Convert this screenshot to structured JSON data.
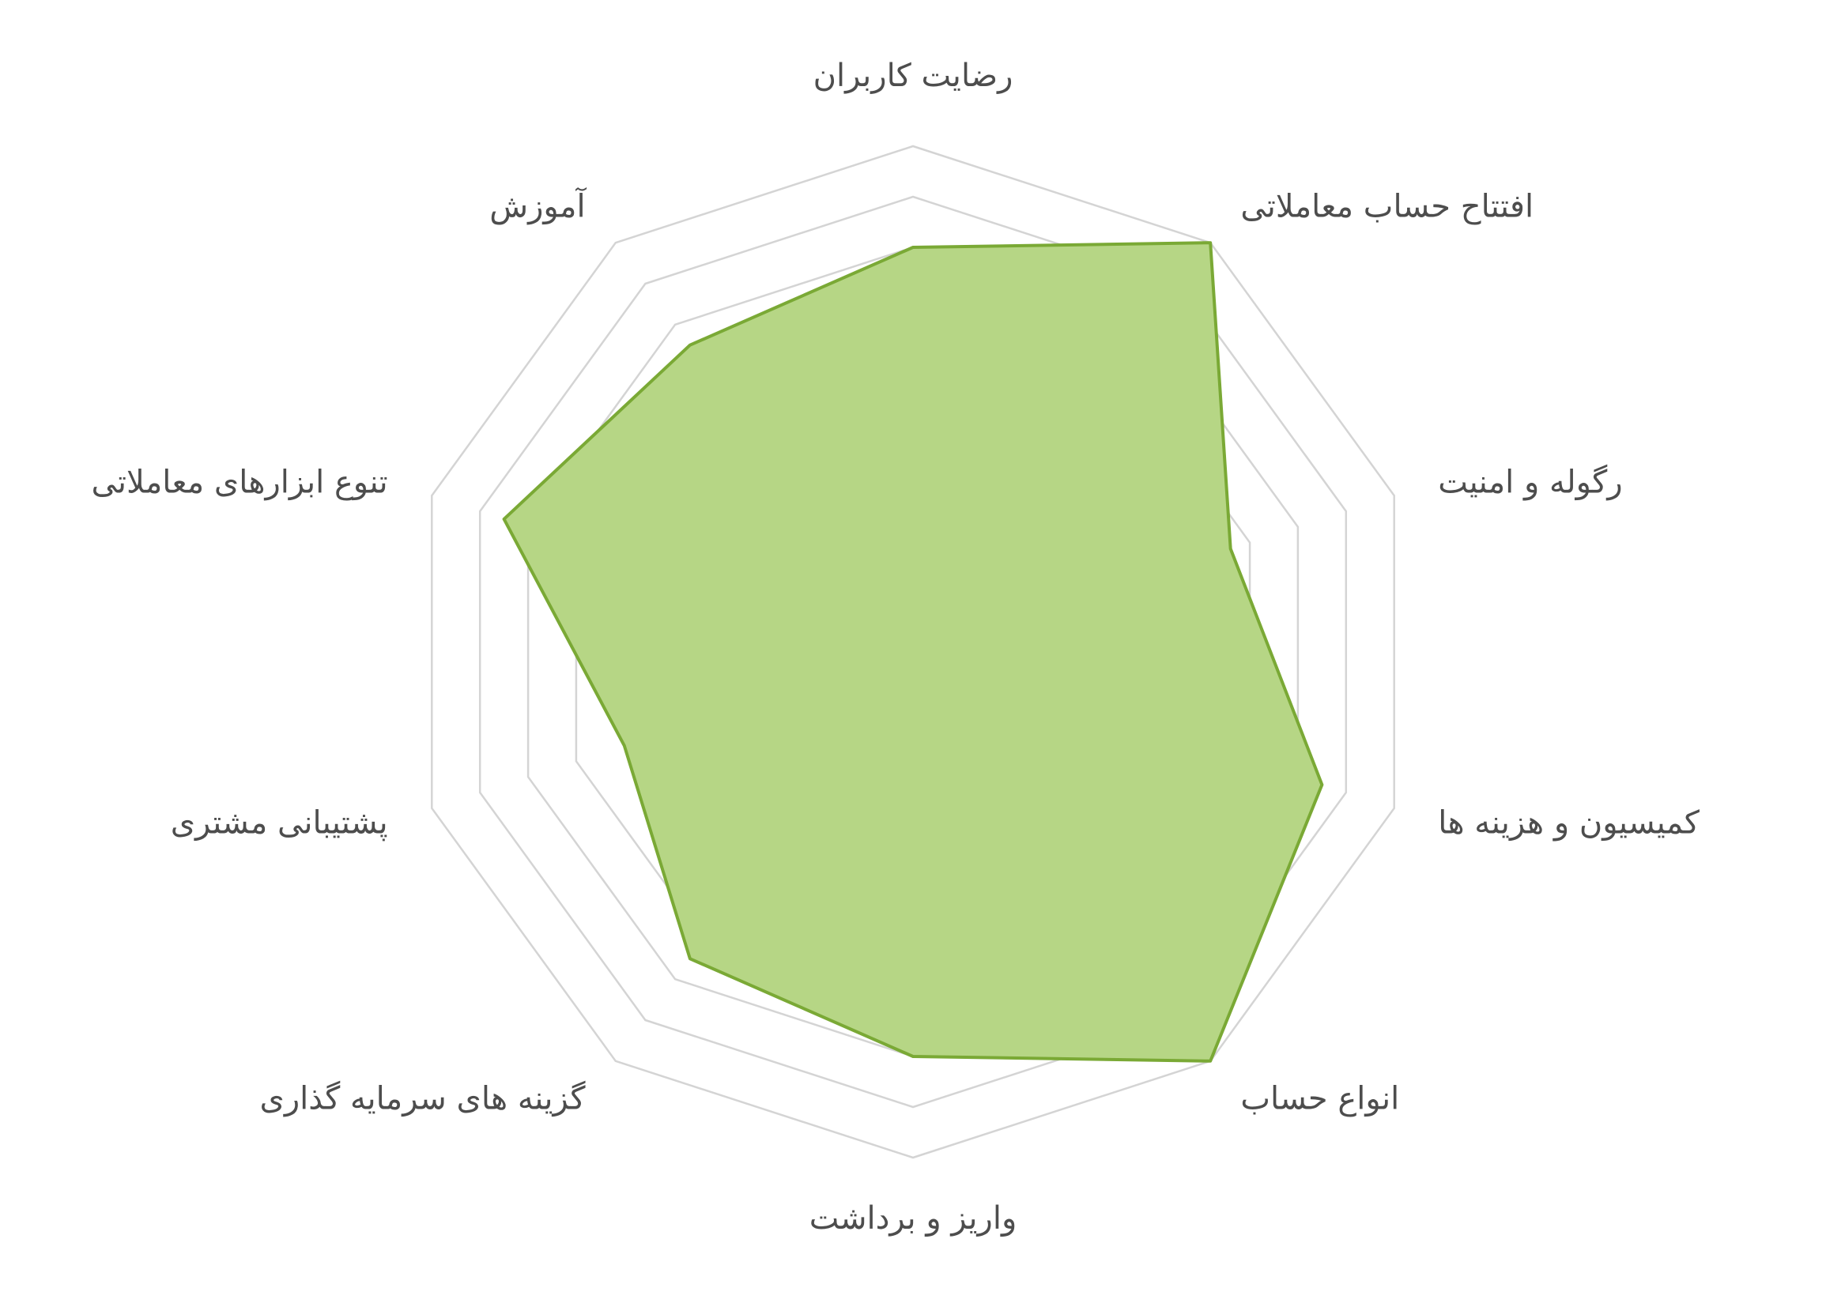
{
  "chart_data": {
    "type": "radar",
    "title": "",
    "categories": [
      "رضایت کاربران",
      "افتتاح حساب معاملاتی",
      "رگوله و امنیت",
      "کمیسیون و هزینه ها",
      "انواع حساب",
      "واریز و برداشت",
      "گزینه های سرمایه گذاری",
      "پشتیبانی مشتری",
      "تنوع ابزارهای معاملاتی",
      "آموزش"
    ],
    "series": [
      {
        "values": [
          8.0,
          10.0,
          6.6,
          8.5,
          10.0,
          8.0,
          7.5,
          6.0,
          8.5,
          7.5
        ]
      }
    ],
    "rlim": [
      0,
      10
    ],
    "ring_count": 9,
    "grid": true,
    "colors": {
      "fill": "#b6d685",
      "stroke": "#7aa935",
      "grid": "#d4d4d4",
      "text": "#4d4d4d"
    }
  }
}
